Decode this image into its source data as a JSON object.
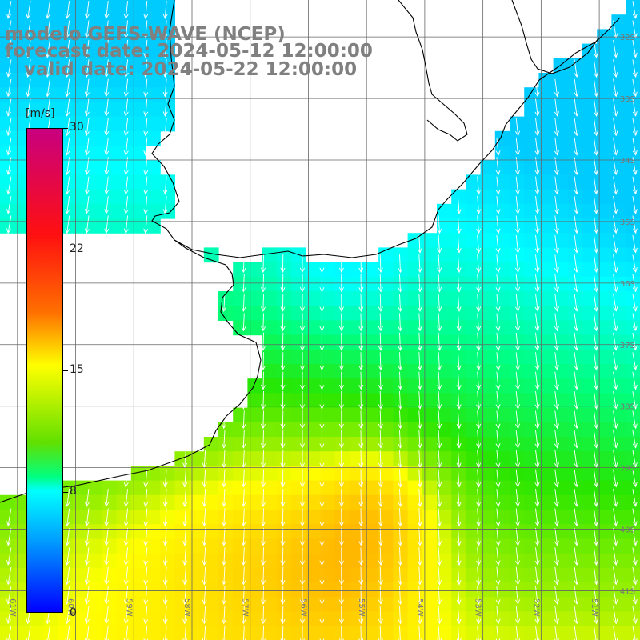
{
  "title": {
    "model": "modelo GEFS-WAVE (NCEP)",
    "forecast": "forecast date: 2024-05-12 12:00:00",
    "valid": "   valid date: 2024-05-22 12:00:00"
  },
  "colorbar": {
    "unit": "[m/s]",
    "range": [
      0,
      30
    ],
    "ticks": [
      "30",
      "22",
      "15",
      "8",
      "0"
    ]
  },
  "axes": {
    "lon_labels": [
      "61W",
      "60W",
      "59W",
      "58W",
      "57W",
      "56W",
      "55W",
      "54W",
      "53W",
      "52W",
      "51W"
    ],
    "lat_labels": [
      "32S",
      "33S",
      "34S",
      "35S",
      "36S",
      "37S",
      "38S",
      "39S",
      "40S",
      "41S"
    ],
    "lon_range": [
      -61.3,
      -50.3
    ],
    "lat_range": [
      -41.8,
      -31.4
    ]
  },
  "field": {
    "variable": "wind speed",
    "arrow_direction": "mostly from north, pointing south-southwest",
    "speed_range": [
      8,
      17
    ]
  }
}
